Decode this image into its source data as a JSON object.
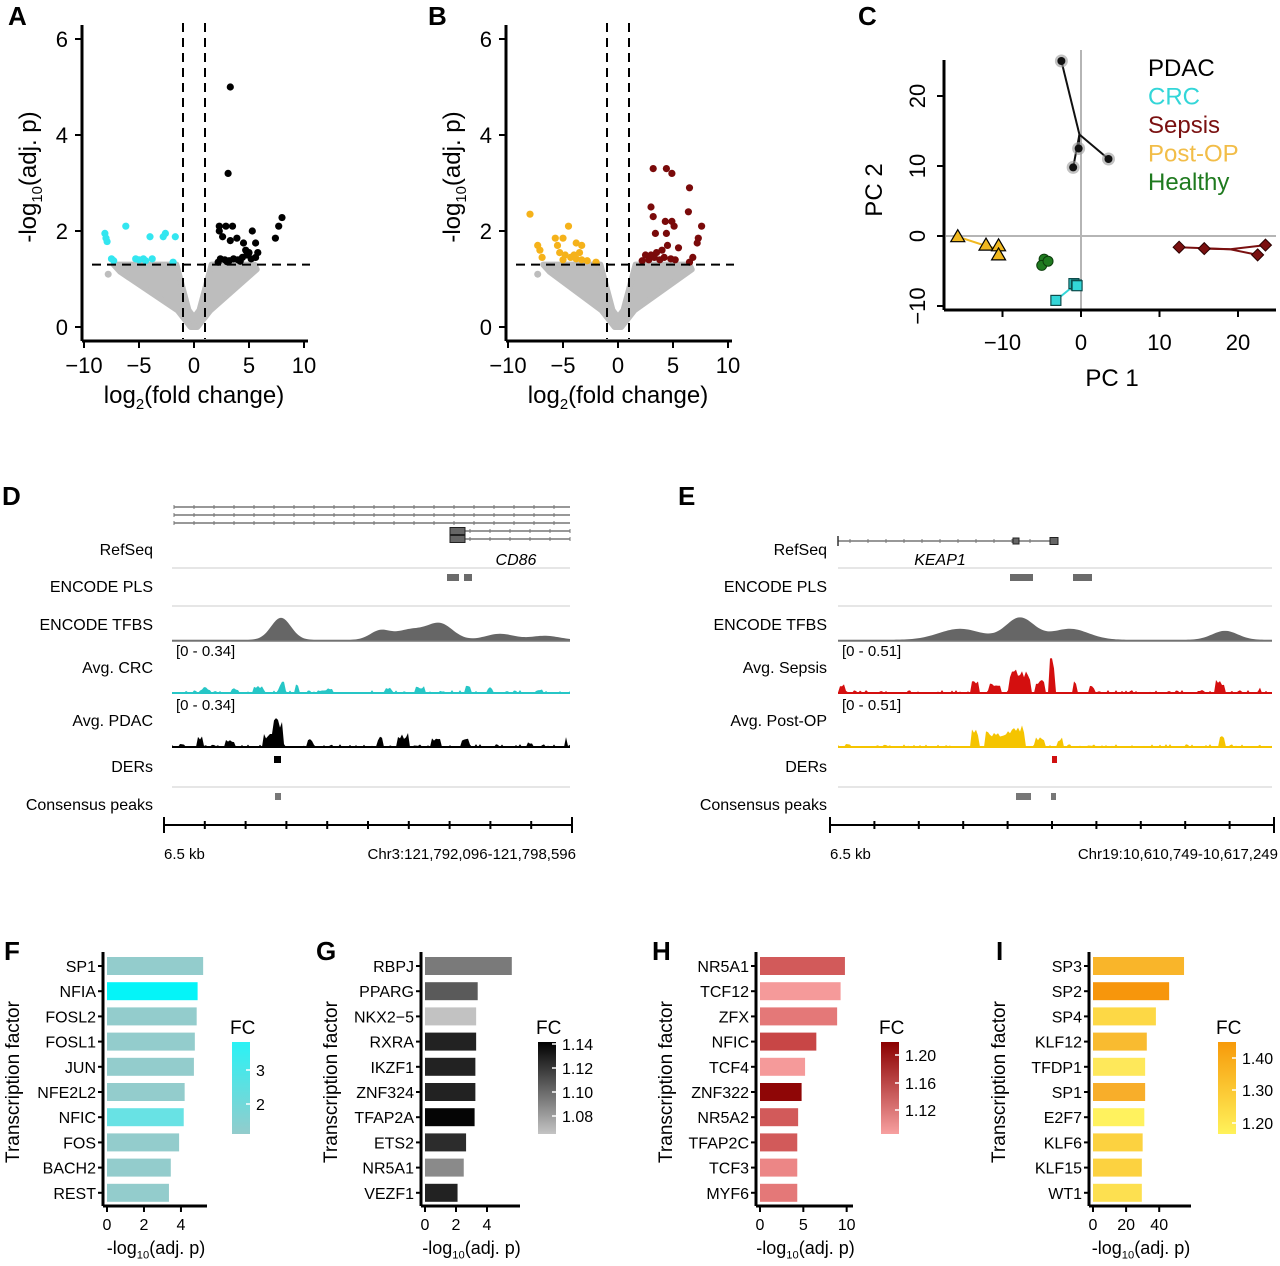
{
  "panels": [
    "A",
    "B",
    "C",
    "D",
    "E",
    "F",
    "G",
    "H",
    "I"
  ],
  "chart_data": [
    {
      "id": "A",
      "type": "scatter",
      "subtype": "volcano",
      "xlabel": "log2(fold change)",
      "ylabel": "-log10(adj. p)",
      "xlim": [
        -10,
        10
      ],
      "ylim": [
        0,
        6
      ],
      "xticks": [
        "−10",
        "−5",
        "0",
        "5",
        "10"
      ],
      "yticks": [
        "0",
        "2",
        "4",
        "6"
      ],
      "thresholds": {
        "x": [
          -1,
          1
        ],
        "y": 1.3
      },
      "colors": {
        "down": "#33e6f0",
        "up": "#000000",
        "ns": "#bdbdbd"
      },
      "down_points": [
        [
          -8.1,
          1.95
        ],
        [
          -8.0,
          1.85
        ],
        [
          -7.9,
          1.78
        ],
        [
          -6.2,
          2.1
        ],
        [
          -7.5,
          1.42
        ],
        [
          -7.3,
          1.38
        ],
        [
          -5.3,
          1.42
        ],
        [
          -5.0,
          1.4
        ],
        [
          -4.6,
          1.42
        ],
        [
          -4.4,
          1.38
        ],
        [
          -4.0,
          1.88
        ],
        [
          -3.8,
          1.42
        ],
        [
          -2.6,
          1.95
        ],
        [
          -2.8,
          1.88
        ],
        [
          -1.7,
          1.88
        ],
        [
          -1.9,
          1.35
        ]
      ],
      "up_points": [
        [
          3.3,
          5.0
        ],
        [
          3.1,
          3.2
        ],
        [
          2.3,
          2.1
        ],
        [
          2.3,
          2.0
        ],
        [
          2.9,
          2.1
        ],
        [
          3.5,
          2.1
        ],
        [
          2.6,
          1.88
        ],
        [
          3.3,
          1.8
        ],
        [
          3.9,
          1.85
        ],
        [
          4.5,
          1.75
        ],
        [
          5.3,
          2.0
        ],
        [
          5.6,
          1.75
        ],
        [
          7.4,
          1.85
        ],
        [
          7.7,
          2.1
        ],
        [
          8.0,
          2.28
        ],
        [
          4.7,
          1.6
        ],
        [
          5.0,
          1.55
        ],
        [
          2.4,
          1.42
        ],
        [
          2.8,
          1.4
        ],
        [
          3.2,
          1.38
        ],
        [
          3.6,
          1.42
        ],
        [
          4.0,
          1.4
        ],
        [
          4.4,
          1.45
        ],
        [
          4.8,
          1.5
        ],
        [
          5.2,
          1.42
        ],
        [
          5.6,
          1.45
        ],
        [
          5.8,
          1.55
        ],
        [
          2.2,
          1.35
        ],
        [
          3.0,
          1.36
        ],
        [
          4.2,
          1.37
        ]
      ],
      "ns_cloud": {
        "left": -7.0,
        "right": 5.5
      }
    },
    {
      "id": "B",
      "type": "scatter",
      "subtype": "volcano",
      "xlabel": "log2(fold change)",
      "ylabel": "-log10(adj. p)",
      "xlim": [
        -10,
        10
      ],
      "ylim": [
        0,
        6
      ],
      "xticks": [
        "−10",
        "−5",
        "0",
        "5",
        "10"
      ],
      "yticks": [
        "0",
        "2",
        "4",
        "6"
      ],
      "thresholds": {
        "x": [
          -1,
          1
        ],
        "y": 1.3
      },
      "colors": {
        "down": "#f5b21a",
        "up": "#7a0a0a",
        "ns": "#bdbdbd"
      },
      "down_points": [
        [
          -8.0,
          2.35
        ],
        [
          -4.5,
          2.1
        ],
        [
          -7.3,
          1.7
        ],
        [
          -7.1,
          1.6
        ],
        [
          -5.7,
          1.85
        ],
        [
          -5.0,
          1.85
        ],
        [
          -5.5,
          1.7
        ],
        [
          -3.8,
          1.75
        ],
        [
          -3.3,
          1.7
        ],
        [
          -6.9,
          1.45
        ],
        [
          -5.3,
          1.55
        ],
        [
          -4.8,
          1.5
        ],
        [
          -4.3,
          1.45
        ],
        [
          -3.8,
          1.42
        ],
        [
          -3.3,
          1.4
        ],
        [
          -2.8,
          1.38
        ],
        [
          -2.0,
          1.35
        ],
        [
          -5.0,
          1.4
        ],
        [
          -4.0,
          1.5
        ],
        [
          -3.5,
          1.55
        ]
      ],
      "up_points": [
        [
          3.2,
          3.3
        ],
        [
          4.4,
          3.3
        ],
        [
          4.9,
          3.2
        ],
        [
          6.5,
          2.9
        ],
        [
          6.4,
          2.4
        ],
        [
          3.0,
          2.5
        ],
        [
          3.2,
          2.3
        ],
        [
          4.3,
          2.2
        ],
        [
          4.9,
          2.2
        ],
        [
          5.1,
          2.1
        ],
        [
          7.6,
          2.1
        ],
        [
          3.4,
          1.95
        ],
        [
          4.4,
          1.95
        ],
        [
          7.3,
          1.85
        ],
        [
          7.2,
          1.75
        ],
        [
          2.5,
          1.5
        ],
        [
          3.0,
          1.5
        ],
        [
          3.5,
          1.55
        ],
        [
          4.0,
          1.6
        ],
        [
          4.5,
          1.7
        ],
        [
          5.5,
          1.65
        ],
        [
          6.8,
          1.45
        ],
        [
          2.2,
          1.38
        ],
        [
          2.8,
          1.4
        ],
        [
          3.3,
          1.45
        ],
        [
          3.8,
          1.4
        ],
        [
          4.2,
          1.45
        ],
        [
          4.8,
          1.42
        ],
        [
          5.2,
          1.4
        ],
        [
          6.5,
          1.35
        ]
      ],
      "ns_cloud": {
        "left": -6.5,
        "right": 6.5
      }
    },
    {
      "id": "C",
      "type": "scatter",
      "subtype": "pca",
      "xlabel": "PC 1",
      "ylabel": "PC 2",
      "xlim": [
        -17,
        25
      ],
      "ylim": [
        -11,
        26
      ],
      "xticks": [
        "−10",
        "0",
        "10",
        "20"
      ],
      "yticks": [
        "−10",
        "0",
        "10",
        "20"
      ],
      "legend_position": "top-right",
      "series": [
        {
          "name": "PDAC",
          "color": "#111111",
          "marker": "circle",
          "points": [
            [
              -2.5,
              25
            ],
            [
              -1.0,
              9.8
            ],
            [
              -0.3,
              12.5
            ],
            [
              3.5,
              11
            ]
          ],
          "centroid": [
            -0.2,
            14.5
          ]
        },
        {
          "name": "CRC",
          "color": "#33d6d8",
          "marker": "square",
          "points": [
            [
              -3.2,
              -9.2
            ],
            [
              -0.9,
              -6.8
            ],
            [
              -0.6,
              -7.0
            ],
            [
              -0.5,
              -7.1
            ]
          ],
          "centroid": [
            -0.8,
            -7.0
          ]
        },
        {
          "name": "Sepsis",
          "color": "#7a1010",
          "marker": "diamond",
          "points": [
            [
              12.5,
              -1.6
            ],
            [
              15.7,
              -1.8
            ],
            [
              22.5,
              -2.7
            ],
            [
              23.5,
              -1.3
            ]
          ],
          "centroid": [
            19,
            -1.9
          ]
        },
        {
          "name": "Post-OP",
          "color": "#f0b820",
          "marker": "triangle",
          "points": [
            [
              -15.7,
              -0.1
            ],
            [
              -12.1,
              -1.3
            ],
            [
              -10.5,
              -1.4
            ],
            [
              -10.5,
              -2.7
            ]
          ],
          "centroid": [
            -10.5,
            -2.0
          ]
        },
        {
          "name": "Healthy",
          "color": "#1f7a1f",
          "marker": "circle",
          "points": [
            [
              -4.7,
              -3.3
            ],
            [
              -5.0,
              -4.2
            ],
            [
              -4.2,
              -3.6
            ]
          ],
          "centroid": [
            -4.6,
            -3.7
          ]
        }
      ]
    },
    {
      "id": "D",
      "type": "genome-track",
      "gene": "CD86",
      "scale_label": "6.5 kb",
      "locus": "Chr3:121,792,096-121,798,596",
      "tracks": [
        {
          "label": "RefSeq"
        },
        {
          "label": "ENCODE PLS"
        },
        {
          "label": "ENCODE TFBS",
          "color": "#666666"
        },
        {
          "label": "Avg. CRC",
          "range": "[0 - 0.34]",
          "color": "#26c6c6"
        },
        {
          "label": "Avg. PDAC",
          "range": "[0 - 0.34]",
          "color": "#000000"
        },
        {
          "label": "DERs",
          "color": "#000000"
        },
        {
          "label": "Consensus peaks",
          "color": "#777777"
        }
      ]
    },
    {
      "id": "E",
      "type": "genome-track",
      "gene": "KEAP1",
      "scale_label": "6.5 kb",
      "locus": "Chr19:10,610,749-10,617,249",
      "tracks": [
        {
          "label": "RefSeq"
        },
        {
          "label": "ENCODE PLS"
        },
        {
          "label": "ENCODE TFBS",
          "color": "#666666"
        },
        {
          "label": "Avg. Sepsis",
          "range": "[0 - 0.51]",
          "color": "#d40f0f"
        },
        {
          "label": "Avg. Post-OP",
          "range": "[0 - 0.51]",
          "color": "#f5c400"
        },
        {
          "label": "DERs",
          "color": "#d01010"
        },
        {
          "label": "Consensus peaks",
          "color": "#777777"
        }
      ]
    },
    {
      "id": "F",
      "type": "bar",
      "orientation": "horizontal",
      "xlabel": "-log10(adj. p)",
      "ylabel": "Transcription factor",
      "xlim": [
        0,
        5.3
      ],
      "xticks": [
        0,
        2,
        4
      ],
      "legend_title": "FC",
      "legend_ticks": [
        "3",
        "2"
      ],
      "legend_colors": [
        "#2af2f5",
        "#93cccc"
      ],
      "categories": [
        "SP1",
        "NFIA",
        "FOSL2",
        "FOSL1",
        "JUN",
        "NFE2L2",
        "NFIC",
        "FOS",
        "BACH2",
        "REST"
      ],
      "values": [
        5.2,
        4.9,
        4.85,
        4.75,
        4.7,
        4.2,
        4.15,
        3.9,
        3.45,
        3.35
      ],
      "colors": [
        "#93cccc",
        "#05f4f8",
        "#93cccc",
        "#93cccc",
        "#93cccc",
        "#93cccc",
        "#68e2e4",
        "#93cccc",
        "#93cccc",
        "#93cccc"
      ]
    },
    {
      "id": "G",
      "type": "bar",
      "orientation": "horizontal",
      "xlabel": "-log10(adj. p)",
      "ylabel": "Transcription factor",
      "xlim": [
        0,
        6
      ],
      "xticks": [
        0,
        2,
        4
      ],
      "legend_title": "FC",
      "legend_ticks": [
        "1.14",
        "1.12",
        "1.10",
        "1.08"
      ],
      "legend_colors": [
        "#000000",
        "#c4c4c4"
      ],
      "categories": [
        "RBPJ",
        "PPARG",
        "NKX2−5",
        "RXRA",
        "IKZF1",
        "ZNF324",
        "TFAP2A",
        "ETS2",
        "NR5A1",
        "VEZF1"
      ],
      "values": [
        5.6,
        3.4,
        3.3,
        3.3,
        3.25,
        3.25,
        3.2,
        2.65,
        2.5,
        2.1
      ],
      "colors": [
        "#7a7a7a",
        "#5a5a5a",
        "#c2c2c2",
        "#222222",
        "#222222",
        "#222222",
        "#050505",
        "#2c2c2c",
        "#8a8a8a",
        "#222222"
      ]
    },
    {
      "id": "H",
      "type": "bar",
      "orientation": "horizontal",
      "xlabel": "-log10(adj. p)",
      "ylabel": "Transcription factor",
      "xlim": [
        0,
        10.5
      ],
      "xticks": [
        0,
        5,
        10
      ],
      "legend_title": "FC",
      "legend_ticks": [
        "1.20",
        "1.16",
        "1.12"
      ],
      "legend_colors": [
        "#8b0000",
        "#f7a0a0"
      ],
      "categories": [
        "NR5A1",
        "TCF12",
        "ZFX",
        "NFIC",
        "TCF4",
        "ZNF322",
        "NR5A2",
        "TFAP2C",
        "TCF3",
        "MYF6"
      ],
      "values": [
        9.8,
        9.3,
        8.9,
        6.5,
        5.2,
        4.8,
        4.4,
        4.3,
        4.3,
        4.3
      ],
      "colors": [
        "#d25a5a",
        "#f59a9a",
        "#e47878",
        "#c84646",
        "#f59a9a",
        "#8f0606",
        "#d25a5a",
        "#d25a5a",
        "#ec8686",
        "#e47878"
      ]
    },
    {
      "id": "I",
      "type": "bar",
      "orientation": "horizontal",
      "xlabel": "-log10(adj. p)",
      "ylabel": "Transcription factor",
      "xlim": [
        0,
        58
      ],
      "xticks": [
        0,
        20,
        40
      ],
      "legend_title": "FC",
      "legend_ticks": [
        "1.40",
        "1.30",
        "1.20"
      ],
      "legend_colors": [
        "#f79a0a",
        "#fff25a"
      ],
      "categories": [
        "SP3",
        "SP2",
        "SP4",
        "KLF12",
        "TFDP1",
        "SP1",
        "E2F7",
        "KLF6",
        "KLF15",
        "WT1"
      ],
      "values": [
        55,
        46,
        38,
        32.5,
        31.5,
        31.5,
        31,
        30,
        29.5,
        29.5
      ],
      "colors": [
        "#f9b52a",
        "#f7960c",
        "#fdd845",
        "#f9bb30",
        "#fee85a",
        "#f8ae2a",
        "#fff25e",
        "#fcd240",
        "#fcd240",
        "#fde050"
      ]
    }
  ]
}
